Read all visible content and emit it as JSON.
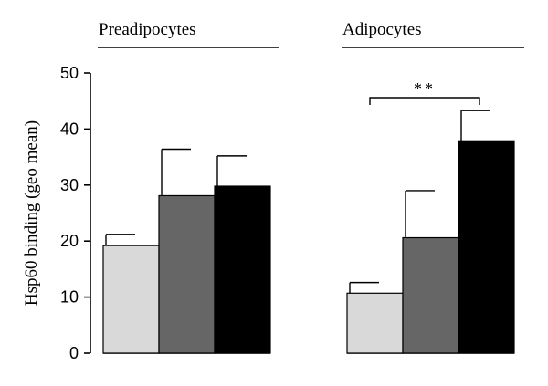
{
  "chart_data": {
    "type": "bar",
    "title": "",
    "xlabel": "",
    "ylabel": "Hsp60 binding (geo mean)",
    "ylim": [
      0,
      50
    ],
    "yticks": [
      0,
      10,
      20,
      30,
      40,
      50
    ],
    "grid": false,
    "groups": [
      {
        "label": "Preadipocytes",
        "bars": [
          {
            "value": 19.2,
            "error": 2.0,
            "color": "#d9d9d9"
          },
          {
            "value": 28.1,
            "error": 8.3,
            "color": "#666666"
          },
          {
            "value": 29.8,
            "error": 5.4,
            "color": "#000000"
          }
        ]
      },
      {
        "label": "Adipocytes",
        "bars": [
          {
            "value": 10.7,
            "error": 1.9,
            "color": "#d9d9d9"
          },
          {
            "value": 20.6,
            "error": 8.4,
            "color": "#666666"
          },
          {
            "value": 37.9,
            "error": 5.4,
            "color": "#000000"
          }
        ]
      }
    ],
    "annotations": [
      {
        "text": "**",
        "group": 1,
        "from_bar": 0,
        "to_bar": 2
      }
    ]
  }
}
